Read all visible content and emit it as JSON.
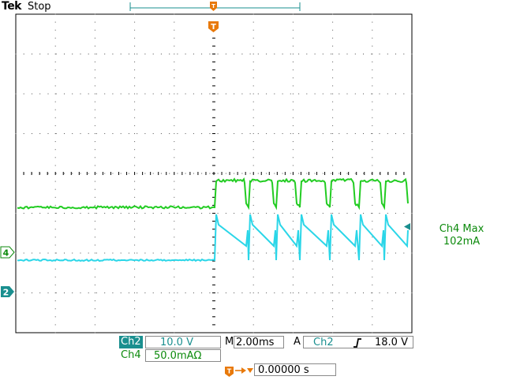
{
  "header": {
    "brand": "Tek",
    "acq_state": "Stop"
  },
  "markers": {
    "trigger_label": "T",
    "ch4_label": "4",
    "ch2_label": "2"
  },
  "measurement": {
    "title": "Ch4 Max",
    "value": "102mA"
  },
  "channels": {
    "ch2": {
      "name": "Ch2",
      "scale": "10.0 V"
    },
    "ch4": {
      "name": "Ch4",
      "scale": "50.0mAΩ"
    }
  },
  "timebase": {
    "mode": "M",
    "scale": "2.00ms"
  },
  "trigger": {
    "mode": "A",
    "source": "Ch2",
    "slope_icon": "rising-edge-icon",
    "level": "18.0 V",
    "position_label": "T",
    "position_value": "0.00000 s"
  },
  "colors": {
    "ch2_trace": "#22cc22",
    "ch4_trace": "#2bd6e8",
    "teal": "#1a8f8f",
    "trigger": "#e8790a",
    "grid": "#000000"
  }
}
